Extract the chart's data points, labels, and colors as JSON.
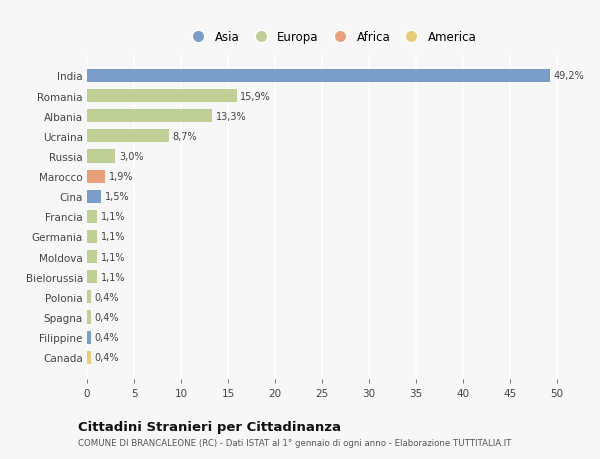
{
  "countries": [
    "India",
    "Romania",
    "Albania",
    "Ucraina",
    "Russia",
    "Marocco",
    "Cina",
    "Francia",
    "Germania",
    "Moldova",
    "Bielorussia",
    "Polonia",
    "Spagna",
    "Filippine",
    "Canada"
  ],
  "values": [
    49.2,
    15.9,
    13.3,
    8.7,
    3.0,
    1.9,
    1.5,
    1.1,
    1.1,
    1.1,
    1.1,
    0.4,
    0.4,
    0.4,
    0.4
  ],
  "labels": [
    "49,2%",
    "15,9%",
    "13,3%",
    "8,7%",
    "3,0%",
    "1,9%",
    "1,5%",
    "1,1%",
    "1,1%",
    "1,1%",
    "1,1%",
    "0,4%",
    "0,4%",
    "0,4%",
    "0,4%"
  ],
  "colors": [
    "#7b9ec9",
    "#bfcf96",
    "#bfcf96",
    "#bfcf96",
    "#bfcf96",
    "#e8a07a",
    "#7b9ec9",
    "#bfcf96",
    "#bfcf96",
    "#bfcf96",
    "#bfcf96",
    "#bfcf96",
    "#bfcf96",
    "#7b9ec9",
    "#e8cc7a"
  ],
  "continent_labels": [
    "Asia",
    "Europa",
    "Africa",
    "America"
  ],
  "continent_colors": [
    "#7b9ec9",
    "#bfcf96",
    "#e8a07a",
    "#e8cc7a"
  ],
  "xlim": [
    0,
    52
  ],
  "xticks": [
    0,
    5,
    10,
    15,
    20,
    25,
    30,
    35,
    40,
    45,
    50
  ],
  "title": "Cittadini Stranieri per Cittadinanza",
  "subtitle": "COMUNE DI BRANCALEONE (RC) - Dati ISTAT al 1° gennaio di ogni anno - Elaborazione TUTTITALIA.IT",
  "bg_color": "#f7f7f7",
  "grid_color": "#ffffff",
  "bar_height": 0.65
}
